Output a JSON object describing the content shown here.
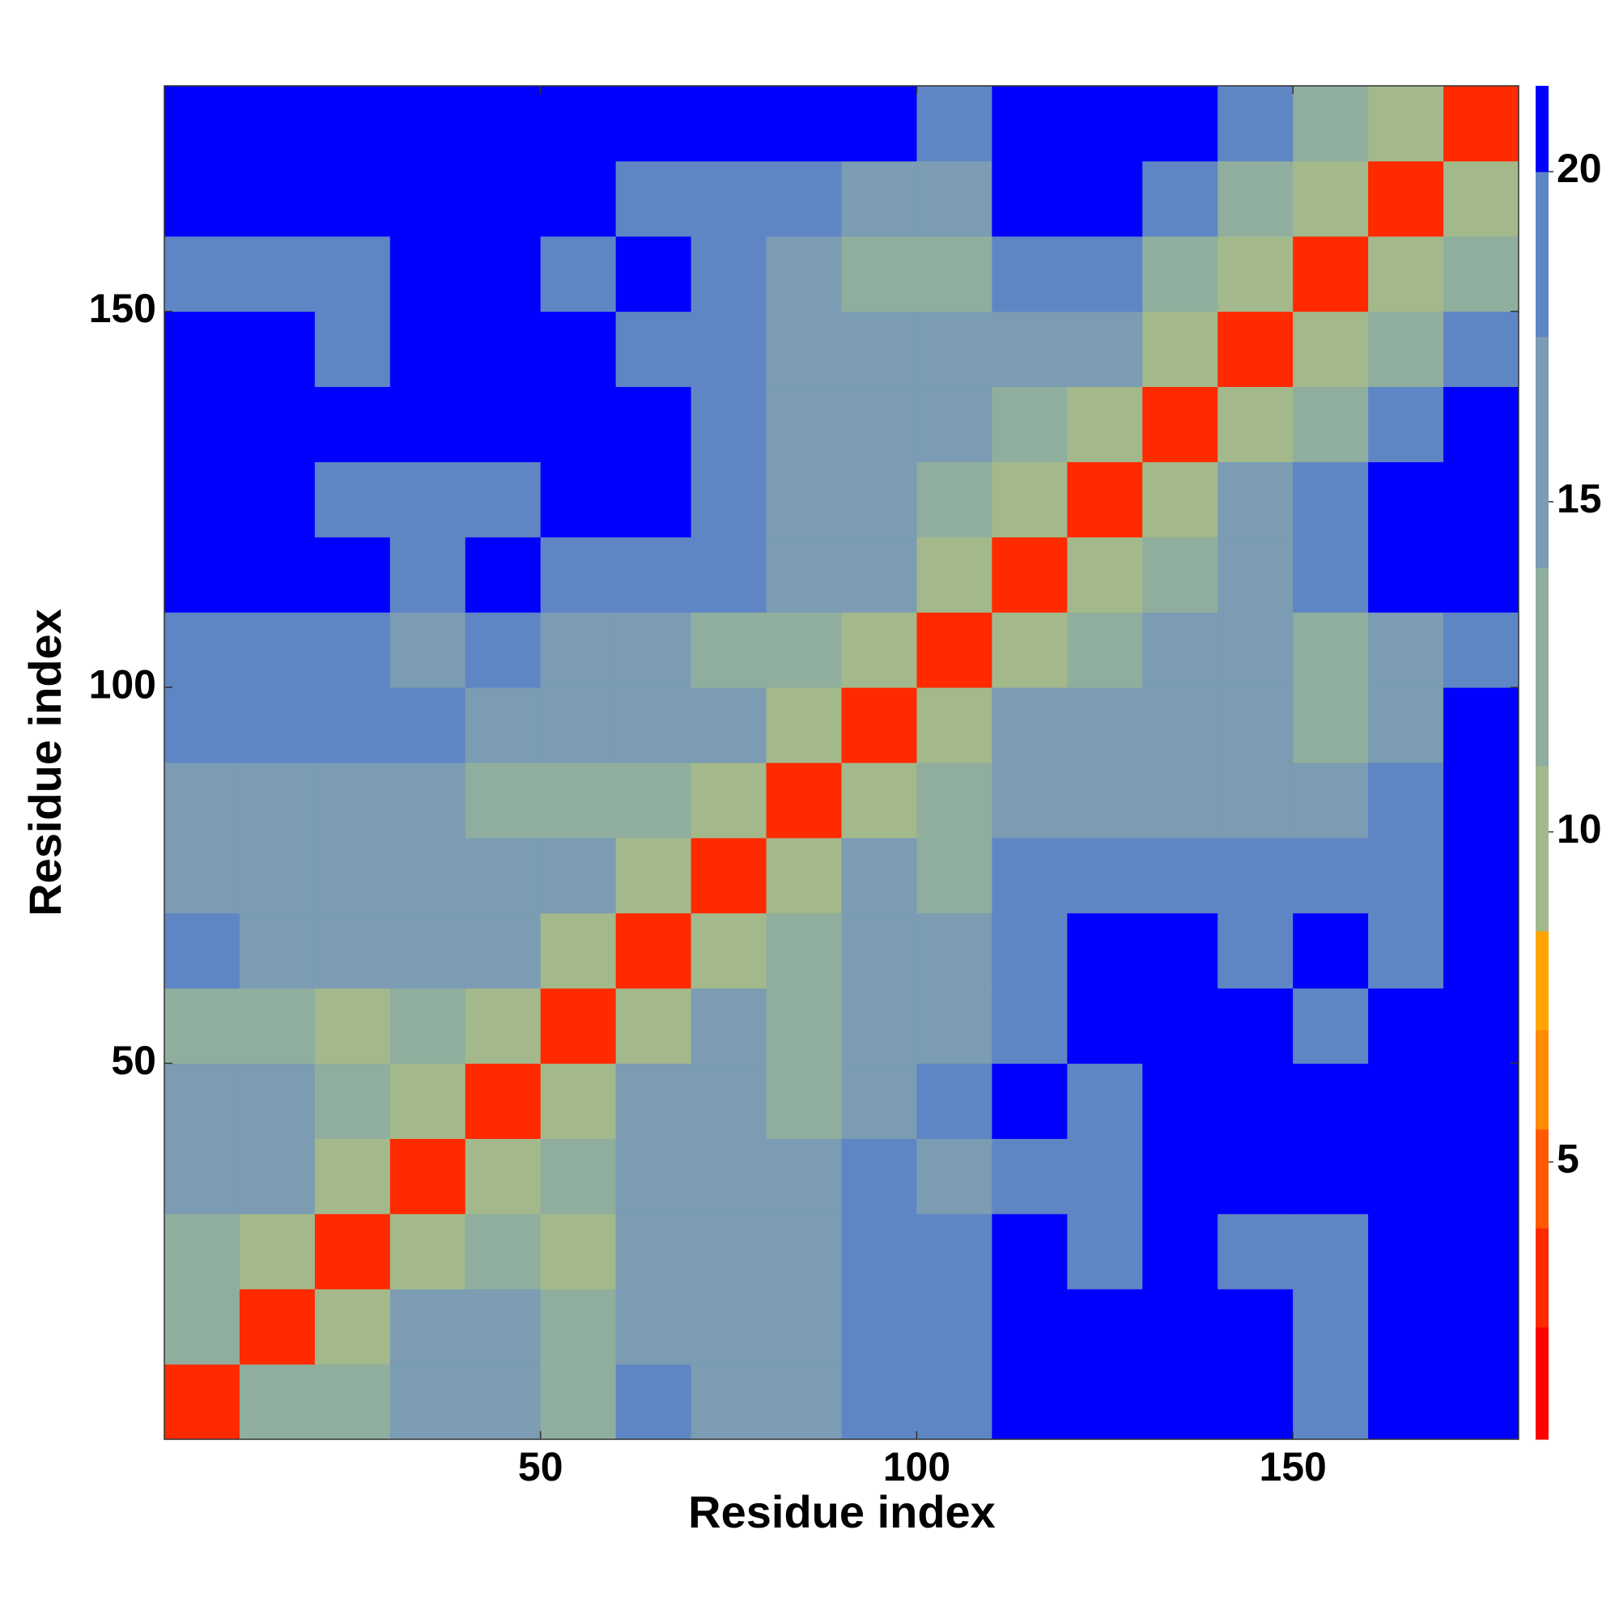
{
  "chart_data": {
    "type": "heatmap",
    "x_label": "Residue index",
    "y_label": "Residue index",
    "x_bins": [
      0,
      10,
      20,
      30,
      40,
      50,
      60,
      70,
      80,
      90,
      100,
      110,
      120,
      130,
      140,
      150,
      160,
      170,
      180
    ],
    "y_bins": [
      0,
      10,
      20,
      30,
      40,
      50,
      60,
      70,
      80,
      90,
      100,
      110,
      120,
      130,
      140,
      150,
      160,
      170,
      180
    ],
    "xlim": [
      0,
      180
    ],
    "ylim": [
      0,
      180
    ],
    "xticks": [
      50,
      100,
      150
    ],
    "yticks": [
      50,
      100,
      150
    ],
    "z": [
      [
        3,
        12,
        14,
        17,
        16,
        13,
        18,
        17,
        16,
        19,
        20,
        21,
        21,
        21,
        21,
        19,
        21,
        21
      ],
      [
        12,
        3,
        11,
        15,
        16,
        12,
        17,
        17,
        15,
        19,
        20,
        21,
        21,
        21,
        21,
        18,
        21,
        21
      ],
      [
        14,
        11,
        3,
        11,
        13,
        10,
        16,
        17,
        16,
        18,
        20,
        21,
        20,
        21,
        20,
        19,
        21,
        21
      ],
      [
        17,
        15,
        11,
        3,
        10,
        14,
        16,
        17,
        16,
        18,
        17,
        20,
        20,
        21,
        21,
        21,
        21,
        21
      ],
      [
        16,
        16,
        13,
        10,
        3,
        11,
        15,
        16,
        14,
        17,
        18,
        21,
        20,
        21,
        21,
        21,
        21,
        21
      ],
      [
        13,
        12,
        10,
        14,
        11,
        3,
        11,
        16,
        12,
        17,
        17,
        20,
        21,
        21,
        21,
        20,
        21,
        21
      ],
      [
        18,
        17,
        16,
        16,
        15,
        11,
        3,
        11,
        14,
        16,
        15,
        20,
        21,
        21,
        20,
        21,
        20,
        21
      ],
      [
        17,
        17,
        17,
        17,
        16,
        16,
        11,
        3,
        11,
        15,
        13,
        19,
        18,
        19,
        19,
        19,
        19,
        21
      ],
      [
        16,
        15,
        16,
        16,
        14,
        12,
        14,
        11,
        3,
        11,
        12,
        17,
        15,
        16,
        16,
        17,
        18,
        21
      ],
      [
        19,
        19,
        18,
        18,
        17,
        17,
        16,
        15,
        11,
        3,
        11,
        16,
        15,
        15,
        15,
        14,
        16,
        21
      ],
      [
        20,
        20,
        20,
        17,
        18,
        17,
        15,
        13,
        12,
        11,
        3,
        11,
        14,
        15,
        15,
        14,
        16,
        20
      ],
      [
        21,
        21,
        21,
        20,
        21,
        20,
        20,
        19,
        17,
        16,
        11,
        3,
        11,
        13,
        17,
        19,
        21,
        21
      ],
      [
        21,
        21,
        20,
        20,
        20,
        21,
        21,
        18,
        15,
        15,
        14,
        11,
        3,
        11,
        15,
        18,
        21,
        21
      ],
      [
        21,
        21,
        21,
        21,
        21,
        21,
        21,
        19,
        16,
        15,
        15,
        13,
        11,
        3,
        11,
        14,
        18,
        21
      ],
      [
        21,
        21,
        20,
        21,
        21,
        21,
        20,
        19,
        16,
        15,
        15,
        17,
        15,
        11,
        3,
        10,
        13,
        18
      ],
      [
        19,
        18,
        19,
        21,
        21,
        20,
        21,
        19,
        17,
        14,
        14,
        19,
        18,
        14,
        10,
        3,
        10,
        13
      ],
      [
        21,
        21,
        21,
        21,
        21,
        21,
        20,
        19,
        18,
        16,
        16,
        21,
        21,
        18,
        13,
        10,
        3,
        10
      ],
      [
        21,
        21,
        21,
        21,
        21,
        21,
        21,
        21,
        21,
        21,
        20,
        21,
        21,
        21,
        18,
        13,
        10,
        3
      ]
    ],
    "color_boundaries": [
      0.8,
      2.5,
      4,
      5.5,
      7,
      8.5,
      11,
      14,
      17.5,
      20,
      21.3
    ],
    "colors": [
      "#ff0000",
      "#ff2a00",
      "#ff5a00",
      "#ff8c00",
      "#ffa500",
      "#a3b98c",
      "#8fae9e",
      "#7b9cb2",
      "#5f86c4",
      "#0000ff"
    ],
    "colorbar_ticks": [
      5,
      10,
      15,
      20
    ]
  }
}
